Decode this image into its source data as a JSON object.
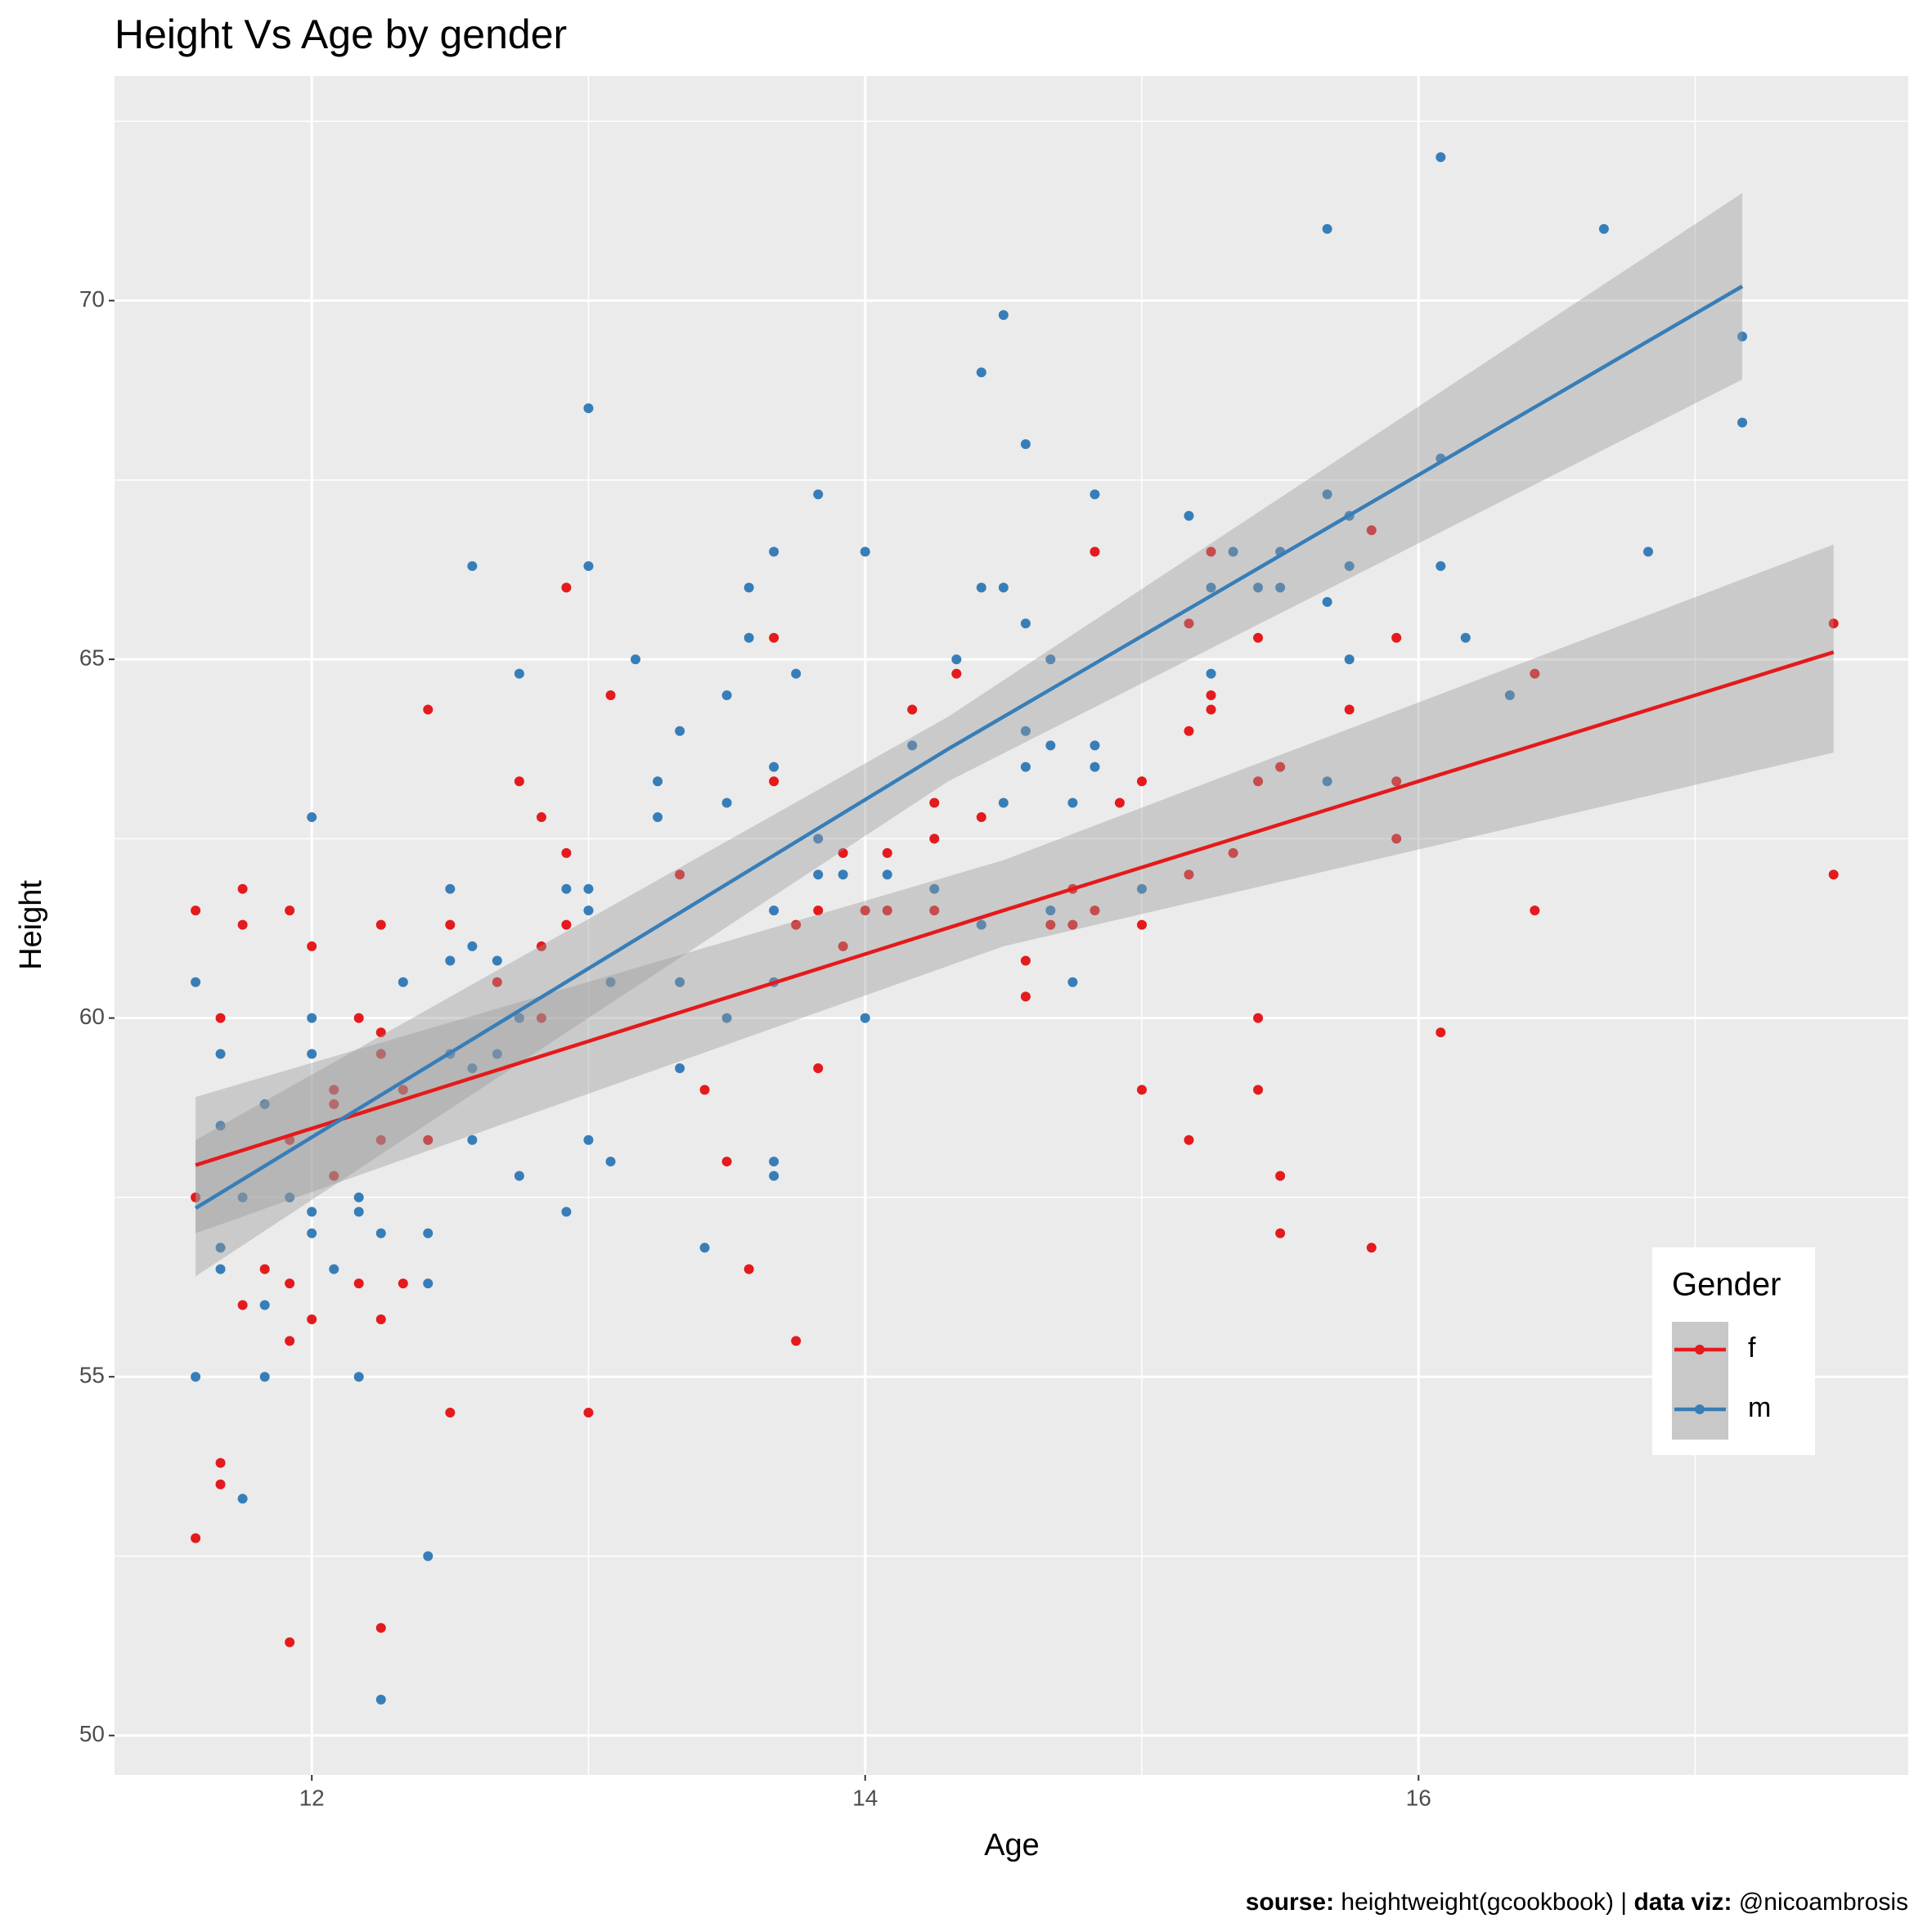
{
  "chart_data": {
    "type": "scatter",
    "title": "Height Vs Age by gender",
    "x_label": "Age",
    "y_label": "Height",
    "xlim": [
      11.287,
      17.77
    ],
    "ylim": [
      49.45,
      73.13
    ],
    "xticks": [
      12,
      14,
      16
    ],
    "yticks": [
      50,
      55,
      60,
      65,
      70
    ],
    "grid": true,
    "legend": {
      "title": "Gender",
      "position": "right"
    },
    "caption": [
      {
        "text": "sourse:",
        "bold": true
      },
      {
        "text": " heightweight(gcookbook) | ",
        "bold": false
      },
      {
        "text": "data viz:",
        "bold": true
      },
      {
        "text": " @nicoambrosis",
        "bold": false
      }
    ],
    "series": [
      {
        "name": "f",
        "color": "#E41A1C",
        "x": [
          11.58,
          11.58,
          11.58,
          11.67,
          11.67,
          11.67,
          11.75,
          11.75,
          11.75,
          11.83,
          11.92,
          11.92,
          11.92,
          11.92,
          11.92,
          12,
          12,
          12.08,
          12.08,
          12.08,
          12.17,
          12.17,
          12.25,
          12.25,
          12.25,
          12.25,
          12.25,
          12.25,
          12.33,
          12.33,
          12.42,
          12.42,
          12.5,
          12.5,
          12.67,
          12.75,
          12.83,
          12.83,
          12.83,
          12.92,
          12.92,
          12.92,
          13,
          13.08,
          13.33,
          13.42,
          13.5,
          13.58,
          13.67,
          13.67,
          13.75,
          13.75,
          13.83,
          13.83,
          13.92,
          13.92,
          14,
          14.08,
          14.08,
          14.17,
          14.25,
          14.25,
          14.25,
          14.33,
          14.42,
          14.58,
          14.58,
          14.67,
          14.75,
          14.75,
          14.83,
          14.83,
          14.92,
          15,
          15,
          15,
          15.17,
          15.17,
          15.17,
          15.17,
          15.25,
          15.25,
          15.25,
          15.33,
          15.42,
          15.42,
          15.42,
          15.42,
          15.5,
          15.5,
          15.5,
          15.75,
          15.83,
          15.83,
          15.92,
          15.92,
          15.92,
          16.08,
          16.42,
          16.42,
          17.5,
          17.5
        ],
        "values": [
          61.5,
          57.5,
          52.75,
          60,
          53.8,
          53.5,
          61.8,
          61.3,
          56,
          56.5,
          61.5,
          58.3,
          56.3,
          55.5,
          51.3,
          61,
          55.8,
          59,
          58.8,
          57.8,
          60,
          56.3,
          61.3,
          59.8,
          59.5,
          58.3,
          55.8,
          51.5,
          56.3,
          59,
          64.3,
          58.3,
          61.3,
          54.5,
          60.5,
          63.3,
          62.8,
          61,
          60,
          66,
          62.3,
          61.3,
          54.5,
          64.5,
          62,
          59,
          58,
          56.5,
          65.3,
          63.3,
          61.3,
          55.5,
          61.5,
          59.3,
          62.3,
          61,
          61.5,
          62.3,
          61.5,
          64.3,
          63,
          62.5,
          61.5,
          64.8,
          62.8,
          60.8,
          60.3,
          61.3,
          61.8,
          61.3,
          66.5,
          61.5,
          63,
          63.3,
          61.3,
          59,
          65.5,
          64,
          62,
          58.3,
          66.5,
          64.5,
          64.3,
          62.3,
          65.3,
          63.3,
          60,
          59,
          63.5,
          57.8,
          57,
          64.3,
          66.8,
          56.8,
          65.3,
          63.3,
          62.5,
          59.8,
          64.8,
          61.5,
          65.5,
          62
        ],
        "fit": {
          "x": [
            11.58,
            14.5,
            17.5
          ],
          "y": [
            57.95,
            61.5,
            65.1
          ],
          "lower": [
            57.0,
            61.0,
            63.7
          ],
          "upper": [
            58.9,
            62.2,
            66.6
          ]
        }
      },
      {
        "name": "m",
        "color": "#377EB8",
        "x": [
          11.58,
          11.58,
          11.67,
          11.67,
          11.67,
          11.67,
          11.75,
          11.75,
          11.83,
          11.83,
          11.83,
          11.92,
          12,
          12,
          12,
          12,
          12,
          12.08,
          12.17,
          12.17,
          12.17,
          12.25,
          12.25,
          12.33,
          12.42,
          12.42,
          12.42,
          12.5,
          12.5,
          12.5,
          12.58,
          12.58,
          12.58,
          12.58,
          12.67,
          12.67,
          12.75,
          12.75,
          12.75,
          12.92,
          12.92,
          13,
          13,
          13,
          13,
          13,
          13.08,
          13.08,
          13.17,
          13.25,
          13.25,
          13.33,
          13.33,
          13.33,
          13.42,
          13.5,
          13.5,
          13.5,
          13.58,
          13.58,
          13.67,
          13.67,
          13.67,
          13.67,
          13.67,
          13.67,
          13.75,
          13.83,
          13.83,
          13.83,
          13.92,
          14,
          14,
          14.08,
          14.17,
          14.25,
          14.33,
          14.42,
          14.42,
          14.42,
          14.5,
          14.5,
          14.5,
          14.58,
          14.58,
          14.58,
          14.58,
          14.67,
          14.67,
          14.67,
          14.75,
          14.75,
          14.83,
          14.83,
          14.83,
          15,
          15.17,
          15.25,
          15.25,
          15.33,
          15.42,
          15.5,
          15.5,
          15.67,
          15.67,
          15.67,
          15.67,
          15.75,
          15.75,
          15.75,
          16.08,
          16.08,
          16.08,
          16.17,
          16.33,
          16.67,
          16.83,
          17.17,
          17.17
        ],
        "values": [
          60.5,
          55,
          59.5,
          58.5,
          56.8,
          56.5,
          57.5,
          53.3,
          58.8,
          56,
          55,
          57.5,
          62.8,
          60,
          59.5,
          57.3,
          57,
          56.5,
          57.5,
          57.3,
          55,
          57,
          50.5,
          60.5,
          57,
          56.3,
          52.5,
          61.8,
          60.8,
          59.5,
          66.3,
          61,
          59.3,
          58.3,
          60.8,
          59.5,
          64.8,
          60,
          57.8,
          61.8,
          57.3,
          68.5,
          66.3,
          61.8,
          61.5,
          58.3,
          60.5,
          58,
          65,
          63.3,
          62.8,
          64,
          60.5,
          59.3,
          56.8,
          64.5,
          63,
          60,
          66,
          65.3,
          66.5,
          63.5,
          61.5,
          60.5,
          58,
          57.8,
          64.8,
          67.3,
          62.5,
          62,
          62,
          66.5,
          60,
          62,
          63.8,
          61.8,
          65,
          69,
          66,
          61.3,
          69.8,
          66,
          63,
          68,
          65.5,
          64,
          63.5,
          65,
          63.8,
          61.5,
          63,
          60.5,
          67.3,
          63.8,
          63.5,
          61.8,
          67,
          66,
          64.8,
          66.5,
          66,
          66.5,
          66,
          71,
          67.3,
          65.8,
          63.3,
          67,
          66.3,
          65,
          72,
          67.8,
          66.3,
          65.3,
          64.5,
          71,
          66.5,
          69.5,
          68.3
        ],
        "fit": {
          "x": [
            11.58,
            14.3,
            17.17
          ],
          "y": [
            57.35,
            63.75,
            70.2
          ],
          "lower": [
            56.4,
            63.3,
            68.9
          ],
          "upper": [
            58.3,
            64.2,
            71.5
          ]
        }
      }
    ]
  }
}
